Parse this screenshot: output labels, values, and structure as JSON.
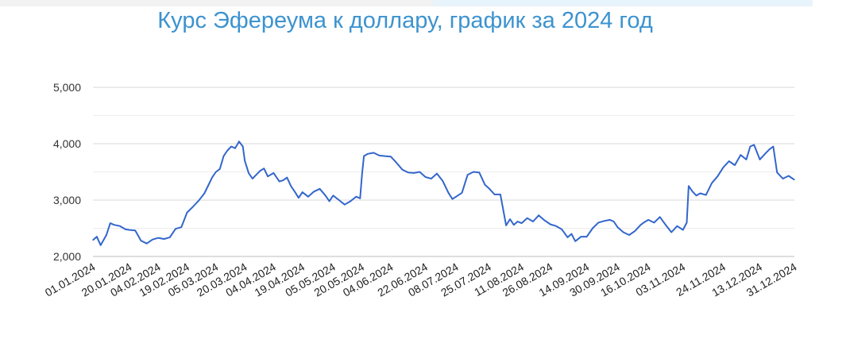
{
  "chart_data": {
    "type": "line",
    "title": "Курс Эфереума к доллару, график за 2024 год",
    "xlabel": "",
    "ylabel": "",
    "ylim": [
      2000,
      5000
    ],
    "yticks": [
      "2,000",
      "3,000",
      "4,000",
      "5,000"
    ],
    "ytick_values": [
      2000,
      3000,
      4000,
      5000
    ],
    "xlim": [
      "2024-01-01",
      "2024-12-31"
    ],
    "grid": true,
    "line_color": "#3366cc",
    "xtick_labels": [
      "01.01.2024",
      "20.01.2024",
      "04.02.2024",
      "19.02.2024",
      "05.03.2024",
      "20.03.2024",
      "04.04.2024",
      "19.04.2024",
      "05.05.2024",
      "20.05.2024",
      "04.06.2024",
      "22.06.2024",
      "08.07.2024",
      "25.07.2024",
      "11.08.2024",
      "26.08.2024",
      "14.09.2024",
      "30.09.2024",
      "16.10.2024",
      "03.11.2024",
      "24.11.2024",
      "13.12.2024",
      "31.12.2024"
    ],
    "xtick_dates": [
      "2024-01-01",
      "2024-01-20",
      "2024-02-04",
      "2024-02-19",
      "2024-03-05",
      "2024-03-20",
      "2024-04-04",
      "2024-04-19",
      "2024-05-05",
      "2024-05-20",
      "2024-06-04",
      "2024-06-22",
      "2024-07-08",
      "2024-07-25",
      "2024-08-11",
      "2024-08-26",
      "2024-09-14",
      "2024-09-30",
      "2024-10-16",
      "2024-11-03",
      "2024-11-24",
      "2024-12-13",
      "2024-12-31"
    ],
    "series": [
      {
        "x": [
          "2024-01-01",
          "2024-01-03",
          "2024-01-05",
          "2024-01-08",
          "2024-01-10",
          "2024-01-12",
          "2024-01-15",
          "2024-01-18",
          "2024-01-20",
          "2024-01-23",
          "2024-01-26",
          "2024-01-29",
          "2024-02-01",
          "2024-02-04",
          "2024-02-07",
          "2024-02-10",
          "2024-02-13",
          "2024-02-16",
          "2024-02-19",
          "2024-02-22",
          "2024-02-25",
          "2024-02-28",
          "2024-03-01",
          "2024-03-03",
          "2024-03-05",
          "2024-03-07",
          "2024-03-09",
          "2024-03-11",
          "2024-03-13",
          "2024-03-15",
          "2024-03-17",
          "2024-03-19",
          "2024-03-20",
          "2024-03-22",
          "2024-03-24",
          "2024-03-26",
          "2024-03-28",
          "2024-03-30",
          "2024-04-01",
          "2024-04-04",
          "2024-04-07",
          "2024-04-09",
          "2024-04-11",
          "2024-04-13",
          "2024-04-15",
          "2024-04-17",
          "2024-04-19",
          "2024-04-22",
          "2024-04-25",
          "2024-04-28",
          "2024-05-01",
          "2024-05-03",
          "2024-05-05",
          "2024-05-08",
          "2024-05-11",
          "2024-05-14",
          "2024-05-17",
          "2024-05-19",
          "2024-05-20",
          "2024-05-21",
          "2024-05-23",
          "2024-05-26",
          "2024-05-29",
          "2024-06-01",
          "2024-06-04",
          "2024-06-07",
          "2024-06-10",
          "2024-06-13",
          "2024-06-16",
          "2024-06-19",
          "2024-06-22",
          "2024-06-25",
          "2024-06-28",
          "2024-07-01",
          "2024-07-04",
          "2024-07-06",
          "2024-07-08",
          "2024-07-11",
          "2024-07-14",
          "2024-07-17",
          "2024-07-20",
          "2024-07-23",
          "2024-07-25",
          "2024-07-28",
          "2024-07-31",
          "2024-08-03",
          "2024-08-05",
          "2024-08-07",
          "2024-08-09",
          "2024-08-11",
          "2024-08-14",
          "2024-08-17",
          "2024-08-20",
          "2024-08-23",
          "2024-08-26",
          "2024-08-29",
          "2024-09-01",
          "2024-09-04",
          "2024-09-06",
          "2024-09-08",
          "2024-09-11",
          "2024-09-14",
          "2024-09-17",
          "2024-09-20",
          "2024-09-23",
          "2024-09-26",
          "2024-09-28",
          "2024-09-30",
          "2024-10-03",
          "2024-10-06",
          "2024-10-09",
          "2024-10-12",
          "2024-10-14",
          "2024-10-16",
          "2024-10-19",
          "2024-10-22",
          "2024-10-25",
          "2024-10-28",
          "2024-10-31",
          "2024-11-03",
          "2024-11-05",
          "2024-11-06",
          "2024-11-08",
          "2024-11-10",
          "2024-11-12",
          "2024-11-15",
          "2024-11-18",
          "2024-11-21",
          "2024-11-24",
          "2024-11-27",
          "2024-11-30",
          "2024-12-03",
          "2024-12-06",
          "2024-12-08",
          "2024-12-10",
          "2024-12-13",
          "2024-12-16",
          "2024-12-18",
          "2024-12-20",
          "2024-12-22",
          "2024-12-25",
          "2024-12-28",
          "2024-12-31"
        ],
        "y": [
          2290,
          2350,
          2200,
          2380,
          2590,
          2560,
          2540,
          2480,
          2470,
          2460,
          2280,
          2230,
          2300,
          2330,
          2310,
          2340,
          2490,
          2520,
          2780,
          2880,
          2990,
          3120,
          3260,
          3400,
          3500,
          3550,
          3780,
          3880,
          3950,
          3920,
          4040,
          3950,
          3700,
          3480,
          3380,
          3450,
          3520,
          3560,
          3420,
          3480,
          3330,
          3350,
          3400,
          3250,
          3150,
          3040,
          3140,
          3060,
          3150,
          3200,
          3080,
          2980,
          3080,
          3000,
          2920,
          2980,
          3060,
          3030,
          3450,
          3780,
          3820,
          3840,
          3790,
          3780,
          3770,
          3660,
          3540,
          3490,
          3480,
          3500,
          3410,
          3380,
          3470,
          3340,
          3130,
          3020,
          3060,
          3130,
          3450,
          3500,
          3490,
          3270,
          3210,
          3100,
          3100,
          2550,
          2660,
          2560,
          2620,
          2590,
          2680,
          2620,
          2730,
          2640,
          2570,
          2540,
          2480,
          2340,
          2400,
          2270,
          2350,
          2350,
          2500,
          2600,
          2630,
          2650,
          2620,
          2520,
          2430,
          2380,
          2450,
          2560,
          2610,
          2650,
          2600,
          2700,
          2560,
          2430,
          2540,
          2470,
          2600,
          3250,
          3150,
          3080,
          3120,
          3090,
          3300,
          3420,
          3580,
          3690,
          3620,
          3800,
          3720,
          3950,
          3980,
          3720,
          3830,
          3900,
          3950,
          3490,
          3380,
          3430,
          3360
        ]
      }
    ]
  }
}
